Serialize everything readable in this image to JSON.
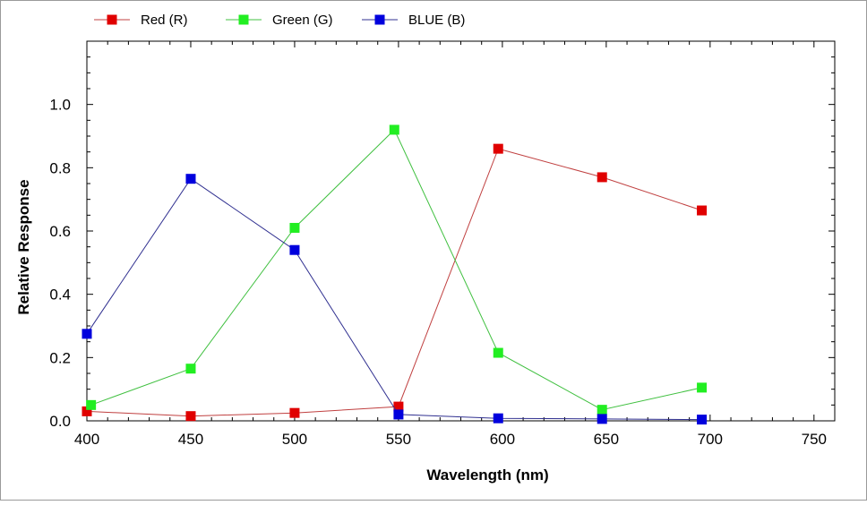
{
  "chart_data": {
    "type": "line",
    "xlabel": "Wavelength (nm)",
    "ylabel": "Relative Response",
    "xlim": [
      400,
      760
    ],
    "ylim": [
      0,
      1.2
    ],
    "x_ticks": [
      "400",
      "450",
      "500",
      "550",
      "600",
      "650",
      "700",
      "750"
    ],
    "y_ticks": [
      "0.0",
      "0.2",
      "0.4",
      "0.6",
      "0.8",
      "1.0"
    ],
    "grid": false,
    "legend_position": "top-left",
    "series": [
      {
        "name": "Red (R)",
        "color": "#e00000",
        "line_color": "#c04040",
        "x": [
          400,
          450,
          500,
          550,
          598,
          648,
          696
        ],
        "y": [
          0.03,
          0.015,
          0.025,
          0.045,
          0.86,
          0.77,
          0.665
        ]
      },
      {
        "name": "Green (G)",
        "color": "#22ee22",
        "line_color": "#40c040",
        "x": [
          402,
          450,
          500,
          548,
          598,
          648,
          696
        ],
        "y": [
          0.05,
          0.165,
          0.61,
          0.92,
          0.215,
          0.035,
          0.105
        ]
      },
      {
        "name": "BLUE (B)",
        "color": "#0000dd",
        "line_color": "#303090",
        "x": [
          400,
          450,
          500,
          550,
          598,
          648,
          696
        ],
        "y": [
          0.275,
          0.765,
          0.54,
          0.02,
          0.008,
          0.006,
          0.004
        ]
      }
    ]
  }
}
